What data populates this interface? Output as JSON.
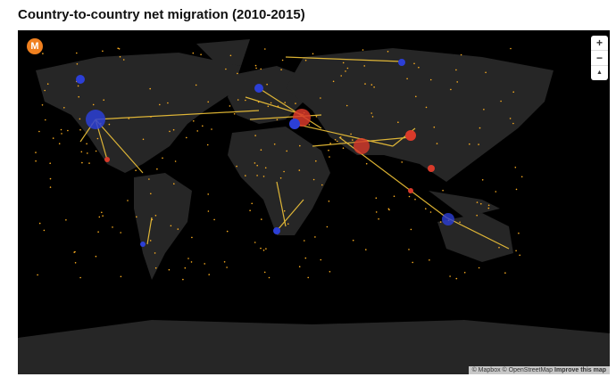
{
  "header": {
    "title": "Country-to-country net migration (2010-2015)"
  },
  "map": {
    "logo": "M",
    "controls": {
      "zoom_in": "+",
      "zoom_out": "−",
      "compass": "▲"
    },
    "attribution": {
      "mapbox": "© Mapbox",
      "osm": "© OpenStreetMap",
      "improve": "Improve this map"
    }
  }
}
